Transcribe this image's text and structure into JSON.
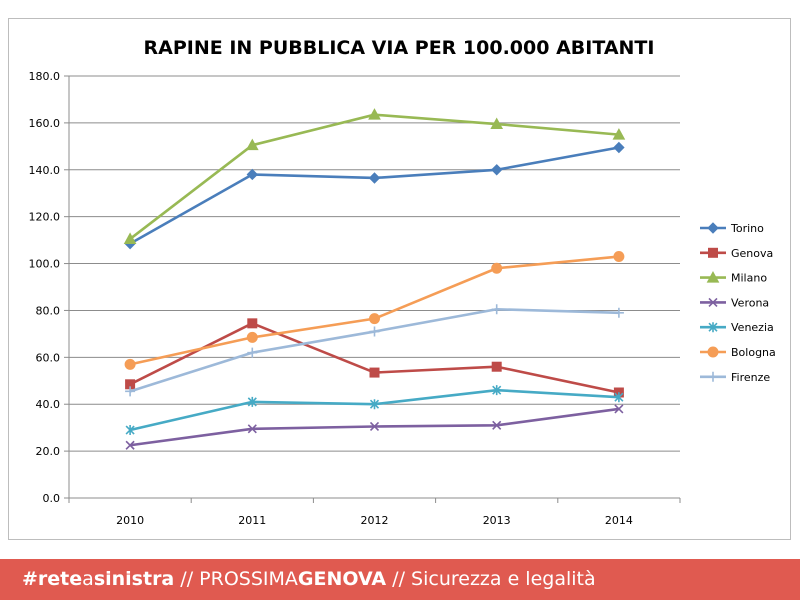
{
  "chart_data": {
    "type": "line",
    "title": "RAPINE IN PUBBLICA VIA PER 100.000 ABITANTI",
    "categories": [
      "2010",
      "2011",
      "2012",
      "2013",
      "2014"
    ],
    "ylim": [
      0,
      180
    ],
    "yticks": [
      "0.0",
      "20.0",
      "40.0",
      "60.0",
      "80.0",
      "100.0",
      "120.0",
      "140.0",
      "160.0",
      "180.0"
    ],
    "grid": true,
    "legend_position": "right",
    "series": [
      {
        "name": "Torino",
        "values": [
          108.5,
          138.0,
          136.5,
          140.0,
          149.5
        ],
        "color": "#4a7ebb",
        "marker": "diamond"
      },
      {
        "name": "Genova",
        "values": [
          48.5,
          74.5,
          53.5,
          56.0,
          45.0
        ],
        "color": "#be4b48",
        "marker": "square"
      },
      {
        "name": "Milano",
        "values": [
          110.5,
          150.5,
          163.5,
          159.5,
          155.0
        ],
        "color": "#98b954",
        "marker": "triangle"
      },
      {
        "name": "Verona",
        "values": [
          22.5,
          29.5,
          30.5,
          31.0,
          38.0
        ],
        "color": "#7d60a0",
        "marker": "x"
      },
      {
        "name": "Venezia",
        "values": [
          29.0,
          41.0,
          40.0,
          46.0,
          43.0
        ],
        "color": "#46aac5",
        "marker": "star"
      },
      {
        "name": "Bologna",
        "values": [
          57.0,
          68.5,
          76.5,
          98.0,
          103.0
        ],
        "color": "#f59d56",
        "marker": "circle"
      },
      {
        "name": "Firenze",
        "values": [
          45.5,
          62.0,
          71.0,
          80.5,
          79.0
        ],
        "color": "#9db9d9",
        "marker": "plus"
      }
    ]
  },
  "footer": {
    "part1": "#rete",
    "part2": "a",
    "part3": "sinistra",
    "sep1": " // ",
    "part4": "PROSSIMA",
    "part5": "GENOVA",
    "sep2": " // ",
    "part6": "Sicurezza e legalità"
  },
  "colors": {
    "footer_bg": "#e05a50",
    "grid": "#8c8c8c",
    "axis": "#8c8c8c"
  }
}
